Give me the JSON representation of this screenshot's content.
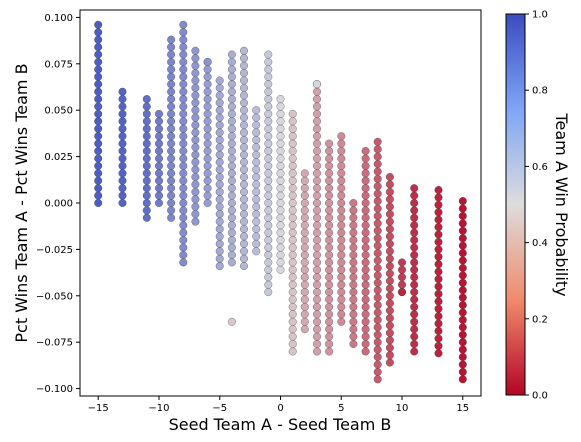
{
  "chart_data": {
    "type": "scatter",
    "title": "",
    "xlabel": "Seed Team A - Seed Team B",
    "ylabel": "Pct Wins Team A - Pct Wins Team B",
    "colorbar_label": "Team A Win Probability",
    "colormap": "coolwarm_r",
    "xlim": [
      -16.5,
      16.5
    ],
    "ylim": [
      -0.104,
      0.104
    ],
    "clim": [
      0.0,
      1.0
    ],
    "xticks": [
      -15,
      -10,
      -5,
      0,
      5,
      10,
      15
    ],
    "xtick_labels": [
      "−15",
      "−10",
      "−5",
      "0",
      "5",
      "10",
      "15"
    ],
    "yticks": [
      -0.1,
      -0.075,
      -0.05,
      -0.025,
      0.0,
      0.025,
      0.05,
      0.075,
      0.1
    ],
    "ytick_labels": [
      "−0.100",
      "−0.075",
      "−0.050",
      "−0.025",
      "0.000",
      "0.025",
      "0.050",
      "0.075",
      "0.100"
    ],
    "cticks": [
      0.0,
      0.2,
      0.4,
      0.6,
      0.8,
      1.0
    ],
    "ctick_labels": [
      "0.0",
      "0.2",
      "0.4",
      "0.6",
      "0.8",
      "1.0"
    ],
    "grid": false,
    "legend": "none",
    "colors": {
      "low": "#b40426",
      "mid": "#dddddd",
      "high": "#3b4cc0",
      "point_edge": "#333333"
    },
    "columns": [
      {
        "x": -15,
        "p": 0.94,
        "ymin": 0.0,
        "ymax": 0.096
      },
      {
        "x": -13,
        "p": 0.92,
        "ymin": 0.0,
        "ymax": 0.06
      },
      {
        "x": -11,
        "p": 0.88,
        "ymin": -0.008,
        "ymax": 0.057
      },
      {
        "x": -10,
        "p": 0.84,
        "ymin": 0.0,
        "ymax": 0.048
      },
      {
        "x": -9,
        "p": 0.8,
        "ymin": -0.008,
        "ymax": 0.087
      },
      {
        "x": -8,
        "p": 0.78,
        "ymin": -0.032,
        "ymax": 0.096
      },
      {
        "x": -7,
        "p": 0.74,
        "ymin": -0.01,
        "ymax": 0.082
      },
      {
        "x": -6,
        "p": 0.72,
        "ymin": 0.0,
        "ymax": 0.076
      },
      {
        "x": -5,
        "p": 0.68,
        "ymin": -0.034,
        "ymax": 0.064
      },
      {
        "x": -4,
        "p": 0.66,
        "ymin": -0.032,
        "ymax": 0.08
      },
      {
        "x": -3,
        "p": 0.63,
        "ymin": -0.034,
        "ymax": 0.08
      },
      {
        "x": -2,
        "p": 0.61,
        "ymin": -0.026,
        "ymax": 0.048
      },
      {
        "x": -1,
        "p": 0.57,
        "ymin": -0.048,
        "ymax": 0.08
      },
      {
        "x": 0,
        "p": 0.52,
        "ymin": -0.036,
        "ymax": 0.056
      },
      {
        "x": 1,
        "p": 0.44,
        "ymin": -0.08,
        "ymax": 0.048
      },
      {
        "x": 2,
        "p": 0.38,
        "ymin": -0.068,
        "ymax": 0.016
      },
      {
        "x": 3,
        "p": 0.36,
        "ymin": -0.08,
        "ymax": 0.064
      },
      {
        "x": 4,
        "p": 0.33,
        "ymin": -0.08,
        "ymax": 0.032
      },
      {
        "x": 5,
        "p": 0.31,
        "ymin": -0.064,
        "ymax": 0.035
      },
      {
        "x": 6,
        "p": 0.27,
        "ymin": -0.076,
        "ymax": 0.0
      },
      {
        "x": 7,
        "p": 0.24,
        "ymin": -0.08,
        "ymax": 0.026
      },
      {
        "x": 8,
        "p": 0.2,
        "ymin": -0.095,
        "ymax": 0.032
      },
      {
        "x": 9,
        "p": 0.17,
        "ymin": -0.086,
        "ymax": 0.016
      },
      {
        "x": 10,
        "p": 0.13,
        "ymin": -0.048,
        "ymax": -0.032
      },
      {
        "x": 11,
        "p": 0.1,
        "ymin": -0.08,
        "ymax": 0.008
      },
      {
        "x": 13,
        "p": 0.07,
        "ymin": -0.081,
        "ymax": 0.008
      },
      {
        "x": 15,
        "p": 0.04,
        "ymin": -0.095,
        "ymax": 0.0
      }
    ],
    "extra_points": [
      {
        "x": 3,
        "y": 0.064,
        "p": 0.52
      },
      {
        "x": -4,
        "y": -0.064,
        "p": 0.45
      },
      {
        "x": 10,
        "y": -0.048,
        "p": 0.08
      },
      {
        "x": -6,
        "y": 0.076,
        "p": 0.75
      }
    ]
  }
}
